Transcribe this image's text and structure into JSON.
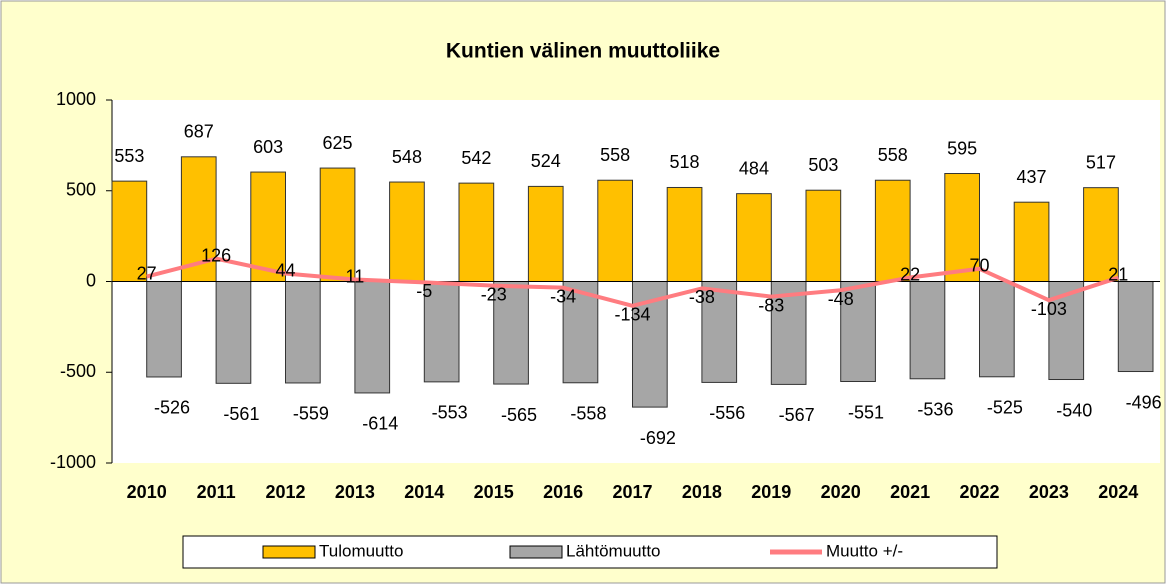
{
  "chart_data": {
    "type": "bar",
    "title": "Kuntien välinen muuttoliike",
    "categories": [
      "2010",
      "2011",
      "2012",
      "2013",
      "2014",
      "2015",
      "2016",
      "2017",
      "2018",
      "2019",
      "2020",
      "2021",
      "2022",
      "2023",
      "2024"
    ],
    "series": [
      {
        "name": "Tulomuutto",
        "color": "#ffc000",
        "type": "bar",
        "values": [
          553,
          687,
          603,
          625,
          548,
          542,
          524,
          558,
          518,
          484,
          503,
          558,
          595,
          437,
          517
        ]
      },
      {
        "name": "Lähtömuutto",
        "color": "#a6a6a6",
        "type": "bar",
        "values": [
          -526,
          -561,
          -559,
          -614,
          -553,
          -565,
          -558,
          -692,
          -556,
          -567,
          -551,
          -536,
          -525,
          -540,
          -496
        ]
      },
      {
        "name": "Muutto +/-",
        "color": "#ff7c80",
        "type": "line",
        "values": [
          27,
          126,
          44,
          11,
          -5,
          -23,
          -34,
          -134,
          -38,
          -83,
          -48,
          22,
          70,
          -103,
          21
        ]
      }
    ],
    "ylim": [
      -1000,
      1000
    ],
    "yticks": [
      -1000,
      -500,
      0,
      500,
      1000
    ],
    "grid": false,
    "legend": "bottom"
  }
}
